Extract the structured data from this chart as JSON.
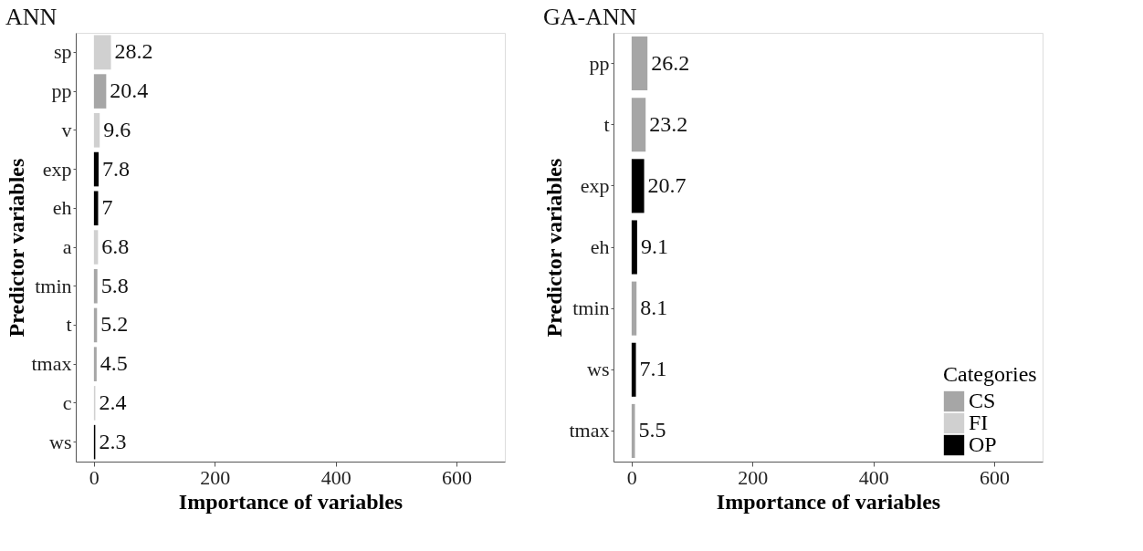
{
  "chart_data": [
    {
      "type": "bar",
      "orientation": "horizontal",
      "title": "ANN",
      "xlabel": "Importance of variables",
      "ylabel": "Predictor variables",
      "categories": [
        "sp",
        "pp",
        "v",
        "exp",
        "eh",
        "a",
        "tmin",
        "t",
        "tmax",
        "c",
        "ws"
      ],
      "values": [
        28.2,
        20.4,
        9.6,
        7.8,
        7,
        6.8,
        5.8,
        5.2,
        4.5,
        2.4,
        2.3
      ],
      "colors": [
        "#d0d0d0",
        "#a6a6a6",
        "#d0d0d0",
        "#000000",
        "#000000",
        "#d0d0d0",
        "#a6a6a6",
        "#a6a6a6",
        "#a6a6a6",
        "#d0d0d0",
        "#000000"
      ],
      "data_labels": true,
      "grid": false,
      "xlim": [
        -30,
        680
      ],
      "xticks": [
        0,
        200,
        400,
        600
      ]
    },
    {
      "type": "bar",
      "orientation": "horizontal",
      "title": "GA-ANN",
      "xlabel": "Importance of variables",
      "ylabel": "Predictor variables",
      "categories": [
        "pp",
        "t",
        "exp",
        "eh",
        "tmin",
        "ws",
        "tmax"
      ],
      "series": [
        {
          "name": "CS",
          "color": "#a6a6a6",
          "values": [
            26.2,
            23.2,
            null,
            null,
            8.1,
            null,
            5.5
          ]
        },
        {
          "name": "FI",
          "color": "#d0d0d0",
          "values": [
            null,
            null,
            null,
            null,
            null,
            null,
            null
          ]
        },
        {
          "name": "OP",
          "color": "#000000",
          "values": [
            null,
            null,
            20.7,
            9.1,
            null,
            7.1,
            null
          ]
        }
      ],
      "legend_title": "Categories",
      "legend": "bottom right",
      "data_labels": true,
      "grid": false,
      "xlim": [
        -30,
        680
      ],
      "xticks": [
        0,
        200,
        400,
        600
      ]
    }
  ]
}
